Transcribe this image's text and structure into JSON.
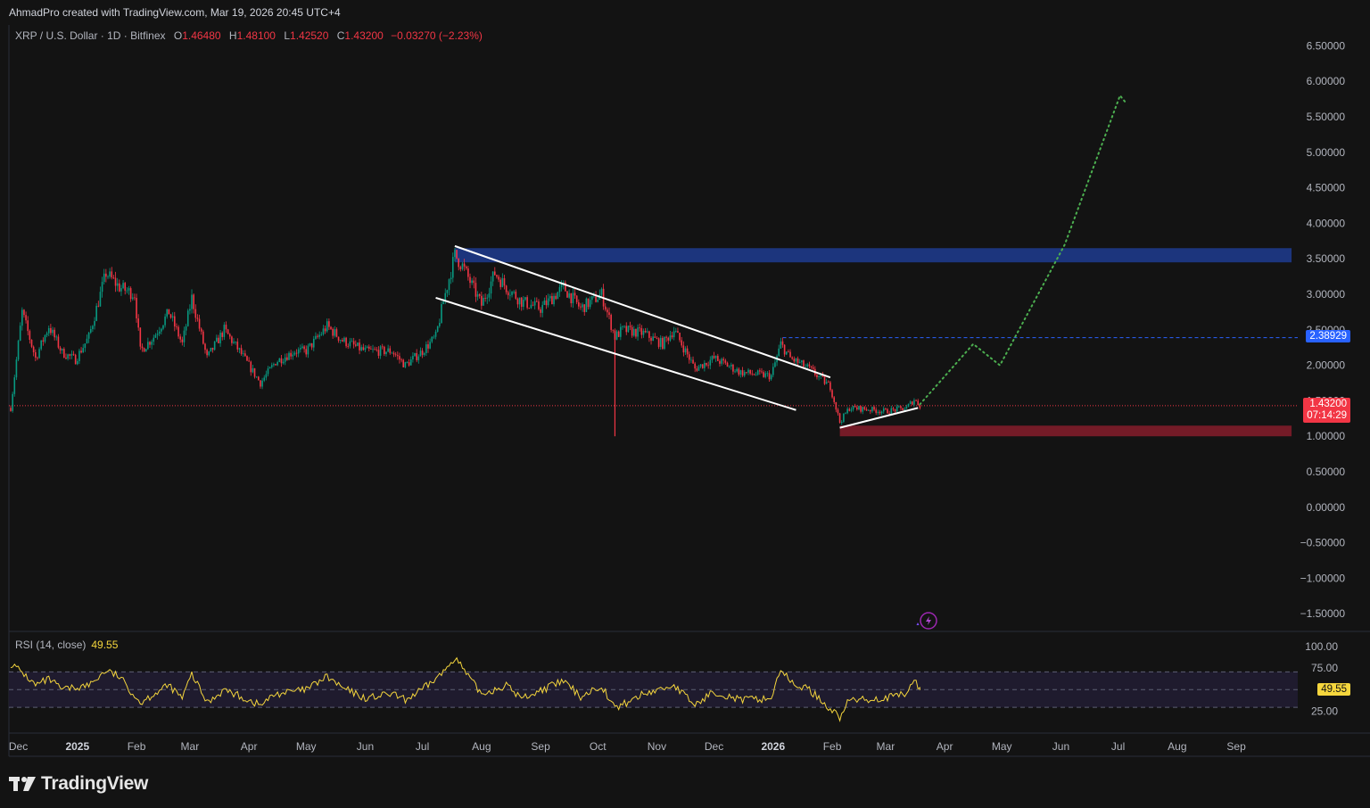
{
  "credit": "AhmadPro created with TradingView.com, Mar 19, 2026 20:45 UTC+4",
  "legend": {
    "symbol": "XRP / U.S. Dollar · 1D · Bitfinex",
    "open_label": "O",
    "open": "1.46480",
    "high_label": "H",
    "high": "1.48100",
    "low_label": "L",
    "low": "1.42520",
    "close_label": "C",
    "close": "1.43200",
    "change": "−0.03270 (−2.23%)"
  },
  "rsi_legend": {
    "name": "RSI (14, close)",
    "value": "49.55"
  },
  "tags": {
    "resistance": "2.38929",
    "last_price": "1.43200",
    "countdown": "07:14:29",
    "rsi_value": "49.55"
  },
  "brand": "TradingView",
  "colors": {
    "background": "#131313",
    "candle_up": "#089981",
    "candle_down": "#f23645",
    "supply_zone": "#1e3a8a",
    "demand_zone": "#7f1d2a",
    "projection": "#4caf50",
    "rsi_line": "#f5d63d",
    "rsi_band": "#1f1b2e",
    "tag_blue": "#2962ff",
    "tag_red": "#f23645"
  },
  "chart_data": {
    "type": "candlestick",
    "title": "XRP / U.S. Dollar · 1D · Bitfinex",
    "price_axis_ticks": [
      6.5,
      6.0,
      5.5,
      5.0,
      4.5,
      4.0,
      3.5,
      3.0,
      2.5,
      2.0,
      1.5,
      1.0,
      0.5,
      0.0,
      -0.5,
      -1.0,
      -1.5
    ],
    "price_axis_labels": [
      "6.50000",
      "6.00000",
      "5.50000",
      "5.00000",
      "4.50000",
      "4.00000",
      "3.50000",
      "3.00000",
      "2.50000",
      "2.00000",
      "1.50000",
      "1.00000",
      "0.50000",
      "0.00000",
      "−0.50000",
      "−1.00000",
      "−1.50000"
    ],
    "ylim": [
      -1.6,
      6.6
    ],
    "time_axis_labels": [
      {
        "label": "Dec",
        "bold": false
      },
      {
        "label": "2025",
        "bold": true
      },
      {
        "label": "Feb",
        "bold": false
      },
      {
        "label": "Mar",
        "bold": false
      },
      {
        "label": "Apr",
        "bold": false
      },
      {
        "label": "May",
        "bold": false
      },
      {
        "label": "Jun",
        "bold": false
      },
      {
        "label": "Jul",
        "bold": false
      },
      {
        "label": "Aug",
        "bold": false
      },
      {
        "label": "Sep",
        "bold": false
      },
      {
        "label": "Oct",
        "bold": false
      },
      {
        "label": "Nov",
        "bold": false
      },
      {
        "label": "Dec",
        "bold": false
      },
      {
        "label": "2026",
        "bold": true
      },
      {
        "label": "Feb",
        "bold": false
      },
      {
        "label": "Mar",
        "bold": false
      },
      {
        "label": "Apr",
        "bold": false
      },
      {
        "label": "May",
        "bold": false
      },
      {
        "label": "Jun",
        "bold": false
      },
      {
        "label": "Jul",
        "bold": false
      },
      {
        "label": "Aug",
        "bold": false
      },
      {
        "label": "Sep",
        "bold": false
      }
    ],
    "price_path": [
      [
        "2024-11-27",
        1.4
      ],
      [
        "2024-12-03",
        2.75
      ],
      [
        "2024-12-10",
        2.1
      ],
      [
        "2024-12-17",
        2.55
      ],
      [
        "2024-12-24",
        2.18
      ],
      [
        "2024-12-31",
        2.08
      ],
      [
        "2025-01-07",
        2.4
      ],
      [
        "2025-01-16",
        3.3
      ],
      [
        "2025-01-23",
        3.1
      ],
      [
        "2025-01-31",
        3.0
      ],
      [
        "2025-02-03",
        2.2
      ],
      [
        "2025-02-10",
        2.4
      ],
      [
        "2025-02-18",
        2.75
      ],
      [
        "2025-02-25",
        2.3
      ],
      [
        "2025-03-02",
        2.95
      ],
      [
        "2025-03-10",
        2.1
      ],
      [
        "2025-03-19",
        2.5
      ],
      [
        "2025-03-27",
        2.2
      ],
      [
        "2025-04-07",
        1.75
      ],
      [
        "2025-04-15",
        2.05
      ],
      [
        "2025-04-25",
        2.2
      ],
      [
        "2025-05-01",
        2.2
      ],
      [
        "2025-05-12",
        2.55
      ],
      [
        "2025-05-20",
        2.35
      ],
      [
        "2025-06-01",
        2.2
      ],
      [
        "2025-06-15",
        2.2
      ],
      [
        "2025-06-22",
        2.0
      ],
      [
        "2025-07-01",
        2.2
      ],
      [
        "2025-07-08",
        2.4
      ],
      [
        "2025-07-12",
        2.9
      ],
      [
        "2025-07-18",
        3.55
      ],
      [
        "2025-07-22",
        3.4
      ],
      [
        "2025-08-01",
        2.85
      ],
      [
        "2025-08-08",
        3.3
      ],
      [
        "2025-08-14",
        3.1
      ],
      [
        "2025-08-22",
        2.9
      ],
      [
        "2025-09-01",
        2.8
      ],
      [
        "2025-09-13",
        3.1
      ],
      [
        "2025-09-22",
        2.8
      ],
      [
        "2025-10-03",
        3.0
      ],
      [
        "2025-10-10",
        2.4
      ],
      [
        "2025-10-14",
        2.5
      ],
      [
        "2025-10-25",
        2.45
      ],
      [
        "2025-11-04",
        2.3
      ],
      [
        "2025-11-10",
        2.5
      ],
      [
        "2025-11-21",
        1.95
      ],
      [
        "2025-12-01",
        2.1
      ],
      [
        "2025-12-15",
        1.9
      ],
      [
        "2025-12-31",
        1.85
      ],
      [
        "2026-01-05",
        2.3
      ],
      [
        "2026-01-10",
        2.1
      ],
      [
        "2026-01-20",
        1.95
      ],
      [
        "2026-01-31",
        1.7
      ],
      [
        "2026-02-05",
        1.2
      ],
      [
        "2026-02-10",
        1.4
      ],
      [
        "2026-02-20",
        1.38
      ],
      [
        "2026-03-01",
        1.35
      ],
      [
        "2026-03-12",
        1.4
      ],
      [
        "2026-03-16",
        1.52
      ],
      [
        "2026-03-19",
        1.432
      ]
    ],
    "candles": [
      {
        "label": "sampled daily candles",
        "count_note": "approximated from price_path"
      }
    ],
    "wick_spike": {
      "date": "2025-10-10",
      "low": 1.0
    },
    "last_candle": {
      "open": 1.4648,
      "high": 1.481,
      "low": 1.4252,
      "close": 1.432,
      "change": -0.0327,
      "change_pct": -2.23
    },
    "annotations": {
      "supply_zone": {
        "from": "2025-07-18",
        "to": "2026-09-30",
        "low": 3.45,
        "high": 3.65
      },
      "demand_zone": {
        "from": "2026-02-05",
        "to": "2026-09-30",
        "low": 1.0,
        "high": 1.15
      },
      "resistance_line": {
        "from": "2026-01-06",
        "price": 2.38929
      },
      "channel_upper": [
        [
          "2025-07-18",
          3.68
        ],
        [
          "2026-01-31",
          1.83
        ]
      ],
      "channel_lower": [
        [
          "2025-07-08",
          2.95
        ],
        [
          "2026-01-13",
          1.37
        ]
      ],
      "support_line": [
        [
          "2026-02-05",
          1.12
        ],
        [
          "2026-03-18",
          1.4
        ]
      ],
      "projection_path": [
        [
          "2026-03-19",
          1.45
        ],
        [
          "2026-04-16",
          2.3
        ],
        [
          "2026-04-30",
          2.0
        ],
        [
          "2026-06-03",
          3.7
        ],
        [
          "2026-07-02",
          5.8
        ],
        [
          "2026-07-05",
          5.7
        ]
      ]
    },
    "rsi": {
      "period": 14,
      "value": 49.55,
      "axis_ticks": [
        100,
        75,
        50,
        25
      ],
      "axis_labels": [
        "100.00",
        "75.00",
        "",
        "25.00"
      ],
      "band": [
        30,
        70
      ],
      "path": [
        [
          "2024-11-27",
          80
        ],
        [
          "2024-12-03",
          70
        ],
        [
          "2024-12-10",
          55
        ],
        [
          "2024-12-17",
          62
        ],
        [
          "2024-12-24",
          50
        ],
        [
          "2025-01-07",
          55
        ],
        [
          "2025-01-16",
          72
        ],
        [
          "2025-01-23",
          65
        ],
        [
          "2025-02-03",
          35
        ],
        [
          "2025-02-10",
          45
        ],
        [
          "2025-02-18",
          55
        ],
        [
          "2025-02-25",
          40
        ],
        [
          "2025-03-02",
          68
        ],
        [
          "2025-03-10",
          35
        ],
        [
          "2025-03-19",
          50
        ],
        [
          "2025-04-07",
          32
        ],
        [
          "2025-04-15",
          45
        ],
        [
          "2025-05-01",
          50
        ],
        [
          "2025-05-12",
          65
        ],
        [
          "2025-05-20",
          52
        ],
        [
          "2025-06-01",
          40
        ],
        [
          "2025-06-15",
          45
        ],
        [
          "2025-06-22",
          38
        ],
        [
          "2025-07-01",
          50
        ],
        [
          "2025-07-12",
          70
        ],
        [
          "2025-07-18",
          88
        ],
        [
          "2025-07-25",
          65
        ],
        [
          "2025-08-01",
          45
        ],
        [
          "2025-08-14",
          55
        ],
        [
          "2025-08-22",
          40
        ],
        [
          "2025-09-13",
          60
        ],
        [
          "2025-09-22",
          42
        ],
        [
          "2025-10-03",
          55
        ],
        [
          "2025-10-10",
          28
        ],
        [
          "2025-10-25",
          45
        ],
        [
          "2025-11-10",
          55
        ],
        [
          "2025-11-21",
          32
        ],
        [
          "2025-12-01",
          48
        ],
        [
          "2025-12-15",
          38
        ],
        [
          "2025-12-31",
          40
        ],
        [
          "2026-01-05",
          75
        ],
        [
          "2026-01-10",
          58
        ],
        [
          "2026-01-20",
          50
        ],
        [
          "2026-02-05",
          18
        ],
        [
          "2026-02-10",
          38
        ],
        [
          "2026-03-01",
          40
        ],
        [
          "2026-03-12",
          45
        ],
        [
          "2026-03-16",
          62
        ],
        [
          "2026-03-19",
          49.55
        ]
      ]
    }
  }
}
